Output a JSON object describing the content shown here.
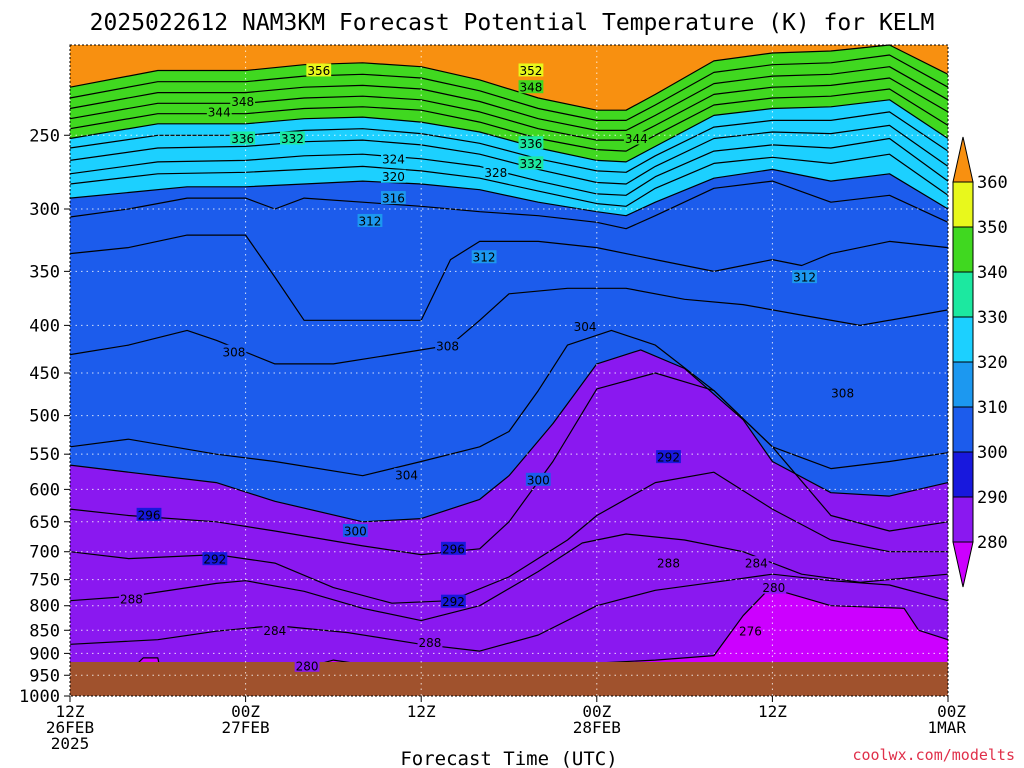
{
  "title": "2025022612 NAM3KM Forecast Potential Temperature (K) for KELM",
  "x_axis_label": "Forecast Time (UTC)",
  "credit": "coolwx.com/modelts",
  "chart_data": {
    "type": "heatmap",
    "title": "2025022612 NAM3KM Forecast Potential Temperature (K) for KELM",
    "xlabel": "Forecast Time (UTC)",
    "ylabel": "",
    "y_scale": "log-pressure (inverted)",
    "y_unit": "hPa",
    "ylim": [
      1000,
      200
    ],
    "y_ticks": [
      250,
      300,
      350,
      400,
      450,
      500,
      550,
      600,
      650,
      700,
      750,
      800,
      850,
      900,
      950,
      1000
    ],
    "x_range_hours": [
      0,
      60
    ],
    "x_ticks": [
      {
        "hour": 0,
        "l1": "12Z",
        "l2": "26FEB",
        "l3": "2025"
      },
      {
        "hour": 12,
        "l1": "00Z",
        "l2": "27FEB",
        "l3": ""
      },
      {
        "hour": 24,
        "l1": "12Z",
        "l2": "",
        "l3": ""
      },
      {
        "hour": 36,
        "l1": "00Z",
        "l2": "28FEB",
        "l3": ""
      },
      {
        "hour": 48,
        "l1": "12Z",
        "l2": "",
        "l3": ""
      },
      {
        "hour": 60,
        "l1": "00Z",
        "l2": "1MAR",
        "l3": ""
      }
    ],
    "grid": true,
    "colorbar": {
      "placement": "right",
      "ticks": [
        280,
        290,
        300,
        310,
        320,
        330,
        340,
        350,
        360
      ],
      "colors": [
        "#cc00ff",
        "#8a18f0",
        "#1818dd",
        "#1c5cec",
        "#1c98f0",
        "#1cd0ff",
        "#1ce8a0",
        "#40d820",
        "#e8f81c",
        "#f8b81c",
        "#f89010"
      ]
    },
    "bands": [
      {
        "range": "<280",
        "color": "#cc00ff"
      },
      {
        "range": "280-290",
        "color": "#8a18f0"
      },
      {
        "range": "290-300",
        "color": "#1818dd"
      },
      {
        "range": "300-310",
        "color": "#1c5cec"
      },
      {
        "range": "310-320",
        "color": "#1c98f0"
      },
      {
        "range": "320-330",
        "color": "#1cd0ff"
      },
      {
        "range": "330-340",
        "color": "#1ce8a0"
      },
      {
        "range": "340-350",
        "color": "#40d820"
      },
      {
        "range": "350-360",
        "color": "#e8f81c"
      },
      {
        "range": ">360",
        "color": "#f89010"
      }
    ],
    "ground_color": "#a0522d",
    "contour_interval_K": 4,
    "contour_labels": [
      {
        "v": "356",
        "hour": 17,
        "p": 213
      },
      {
        "v": "352",
        "hour": 31.5,
        "p": 213
      },
      {
        "v": "348",
        "hour": 31.5,
        "p": 222
      },
      {
        "v": "348",
        "hour": 11.8,
        "p": 230
      },
      {
        "v": "344",
        "hour": 10.2,
        "p": 236
      },
      {
        "v": "336",
        "hour": 11.8,
        "p": 252
      },
      {
        "v": "332",
        "hour": 15.2,
        "p": 252
      },
      {
        "v": "324",
        "hour": 22.1,
        "p": 265
      },
      {
        "v": "320",
        "hour": 22.1,
        "p": 277
      },
      {
        "v": "316",
        "hour": 22.1,
        "p": 292
      },
      {
        "v": "312",
        "hour": 20.5,
        "p": 309
      },
      {
        "v": "312",
        "hour": 28.3,
        "p": 338
      },
      {
        "v": "312",
        "hour": 50.2,
        "p": 355
      },
      {
        "v": "336",
        "hour": 31.5,
        "p": 255
      },
      {
        "v": "332",
        "hour": 31.5,
        "p": 268
      },
      {
        "v": "328",
        "hour": 29.1,
        "p": 274
      },
      {
        "v": "344",
        "hour": 38.7,
        "p": 252
      },
      {
        "v": "304",
        "hour": 35.2,
        "p": 401
      },
      {
        "v": "308",
        "hour": 11.2,
        "p": 427
      },
      {
        "v": "308",
        "hour": 25.8,
        "p": 421
      },
      {
        "v": "308",
        "hour": 52.8,
        "p": 473
      },
      {
        "v": "304",
        "hour": 23.0,
        "p": 579
      },
      {
        "v": "300",
        "hour": 32.0,
        "p": 586
      },
      {
        "v": "292",
        "hour": 40.9,
        "p": 554
      },
      {
        "v": "296",
        "hour": 5.4,
        "p": 639
      },
      {
        "v": "300",
        "hour": 19.5,
        "p": 665
      },
      {
        "v": "296",
        "hour": 26.2,
        "p": 695
      },
      {
        "v": "292",
        "hour": 9.9,
        "p": 713
      },
      {
        "v": "288",
        "hour": 4.2,
        "p": 787
      },
      {
        "v": "292",
        "hour": 26.2,
        "p": 792
      },
      {
        "v": "288",
        "hour": 40.9,
        "p": 720
      },
      {
        "v": "284",
        "hour": 46.9,
        "p": 720
      },
      {
        "v": "280",
        "hour": 48.1,
        "p": 765
      },
      {
        "v": "284",
        "hour": 14.0,
        "p": 851
      },
      {
        "v": "288",
        "hour": 24.6,
        "p": 876
      },
      {
        "v": "276",
        "hour": 46.5,
        "p": 852
      },
      {
        "v": "280",
        "hour": 16.2,
        "p": 928
      }
    ]
  }
}
